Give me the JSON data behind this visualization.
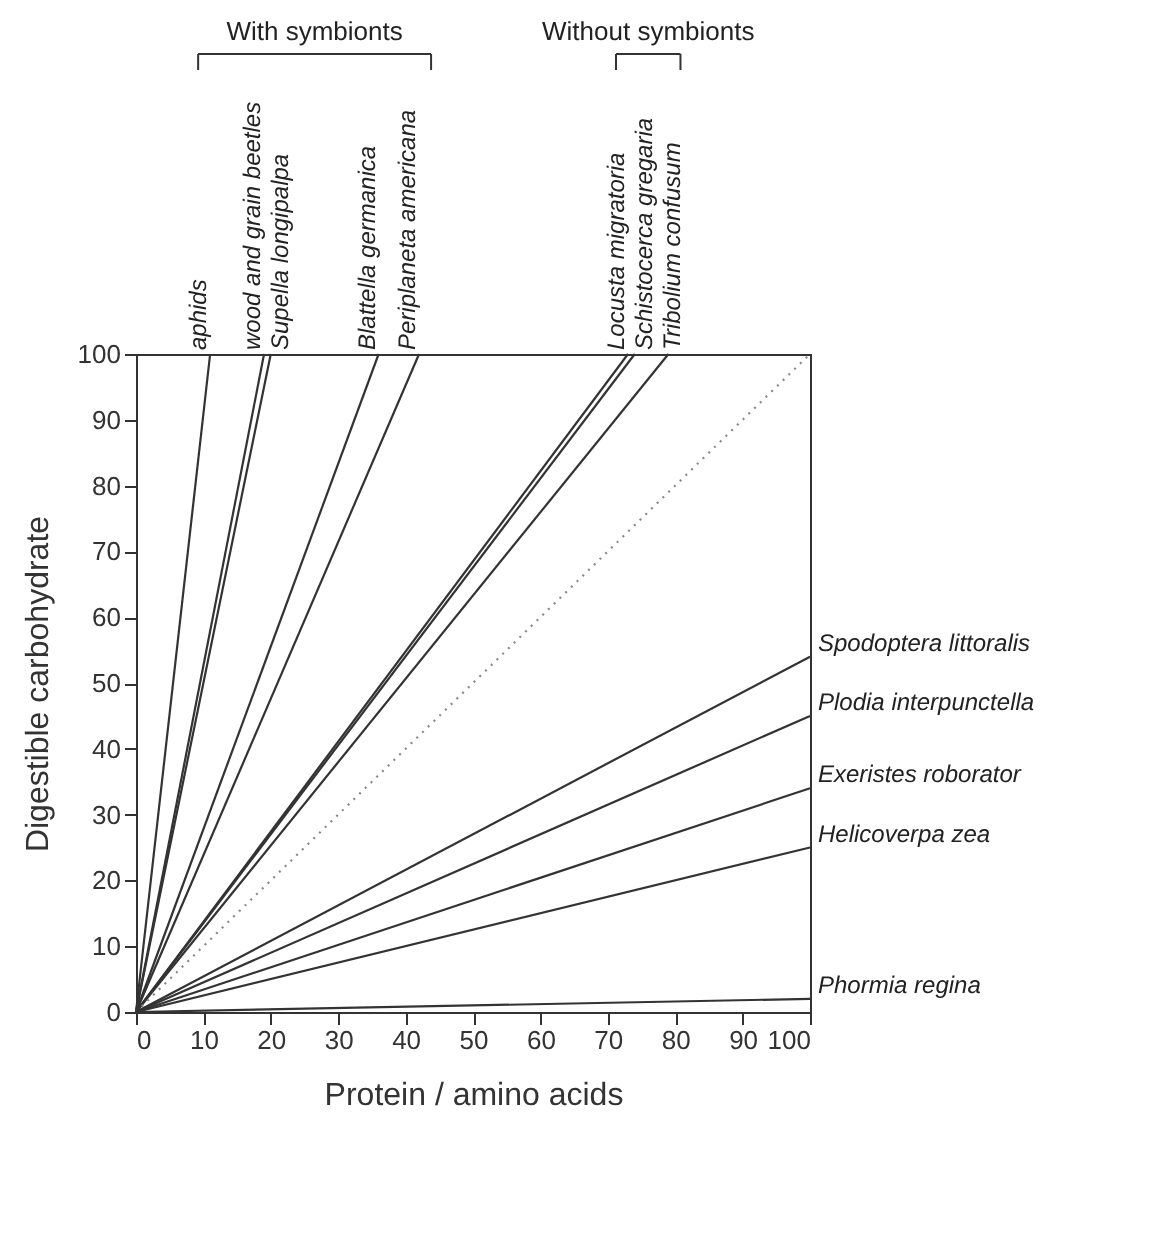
{
  "chart_data": {
    "type": "line",
    "xlabel": "Protein / amino acids",
    "ylabel": "Digestible carbohydrate",
    "xlim": [
      0,
      100
    ],
    "ylim": [
      0,
      100
    ],
    "xticks": [
      0,
      10,
      20,
      30,
      40,
      50,
      60,
      70,
      80,
      90,
      100
    ],
    "yticks": [
      0,
      10,
      20,
      30,
      40,
      50,
      60,
      70,
      80,
      90,
      100
    ],
    "grid": false,
    "legend": false,
    "marker": "none",
    "annotations": [
      "With symbionts",
      "Without symbionts"
    ],
    "series": [
      {
        "name": "aphids",
        "color": "#333333",
        "x": [
          0,
          11
        ],
        "values": [
          0,
          100
        ]
      },
      {
        "name": "wood and grain beetles",
        "color": "#333333",
        "x": [
          0,
          19
        ],
        "values": [
          0,
          100
        ]
      },
      {
        "name": "Supella longipalpa",
        "color": "#333333",
        "x": [
          0,
          20
        ],
        "values": [
          0,
          100
        ]
      },
      {
        "name": "Blattella germanica",
        "color": "#333333",
        "x": [
          0,
          36
        ],
        "values": [
          0,
          100
        ]
      },
      {
        "name": "Periplaneta americana",
        "color": "#333333",
        "x": [
          0,
          42
        ],
        "values": [
          0,
          100
        ]
      },
      {
        "name": "Locusta migratoria",
        "color": "#333333",
        "x": [
          0,
          73
        ],
        "values": [
          0,
          100
        ]
      },
      {
        "name": "Schistocerca gregaria",
        "color": "#333333",
        "x": [
          0,
          74
        ],
        "values": [
          0,
          100
        ]
      },
      {
        "name": "Tribolium confusum",
        "color": "#333333",
        "x": [
          0,
          79
        ],
        "values": [
          0,
          100
        ]
      },
      {
        "color": "#888888",
        "line_style": "dotted",
        "x": [
          0,
          100
        ],
        "values": [
          0,
          100
        ]
      },
      {
        "name": "Spodoptera littoralis",
        "color": "#333333",
        "x": [
          0,
          100
        ],
        "values": [
          0,
          54
        ]
      },
      {
        "name": "Plodia interpunctella",
        "color": "#333333",
        "x": [
          0,
          100
        ],
        "values": [
          0,
          45
        ]
      },
      {
        "name": "Exeristes roborator",
        "color": "#333333",
        "x": [
          0,
          100
        ],
        "values": [
          0,
          34
        ]
      },
      {
        "name": "Helicoverpa zea",
        "color": "#333333",
        "x": [
          0,
          100
        ],
        "values": [
          0,
          25
        ]
      },
      {
        "name": "Phormia regina",
        "color": "#333333",
        "x": [
          0,
          100
        ],
        "values": [
          0,
          2
        ]
      }
    ]
  }
}
